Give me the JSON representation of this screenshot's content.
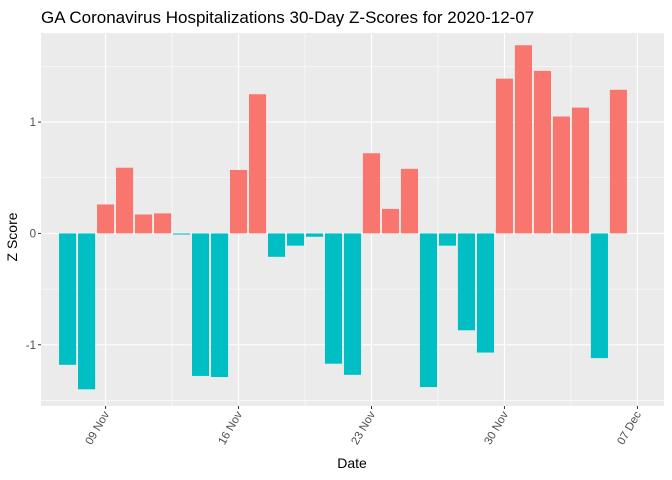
{
  "chart_data": {
    "type": "bar",
    "title": "GA Coronavirus Hospitalizations 30-Day Z-Scores for 2020-12-07",
    "xlabel": "Date",
    "ylabel": "Z Score",
    "x_start": "2020-11-07",
    "x_end": "2020-12-07",
    "x_tick_labels": [
      "09 Nov",
      "16 Nov",
      "23 Nov",
      "30 Nov",
      "07 Dec"
    ],
    "x_tick_dates": [
      "2020-11-09",
      "2020-11-16",
      "2020-11-23",
      "2020-11-30",
      "2020-12-07"
    ],
    "y_ticks": [
      -1,
      0,
      1
    ],
    "y_tick_labels": [
      "-1",
      "0",
      "1"
    ],
    "ylim": [
      -1.55,
      1.8
    ],
    "grid": true,
    "positive_color": "#F8766D",
    "negative_color": "#00BFC4",
    "background_color": "#EBEBEB",
    "dates": [
      "2020-11-07",
      "2020-11-08",
      "2020-11-09",
      "2020-11-10",
      "2020-11-11",
      "2020-11-12",
      "2020-11-13",
      "2020-11-14",
      "2020-11-15",
      "2020-11-16",
      "2020-11-17",
      "2020-11-18",
      "2020-11-19",
      "2020-11-20",
      "2020-11-21",
      "2020-11-22",
      "2020-11-23",
      "2020-11-24",
      "2020-11-25",
      "2020-11-26",
      "2020-11-27",
      "2020-11-28",
      "2020-11-29",
      "2020-11-30",
      "2020-12-01",
      "2020-12-02",
      "2020-12-03",
      "2020-12-04",
      "2020-12-05",
      "2020-12-06",
      "2020-12-07"
    ],
    "values": [
      -1.18,
      -1.4,
      0.26,
      0.59,
      0.17,
      0.18,
      -0.01,
      -1.28,
      -1.29,
      0.57,
      1.25,
      -0.21,
      -0.11,
      -0.03,
      -1.17,
      -1.27,
      0.72,
      0.22,
      0.58,
      -1.38,
      -0.11,
      -0.87,
      -1.07,
      1.39,
      1.69,
      1.46,
      1.05,
      1.13,
      -1.12,
      1.29,
      null
    ]
  }
}
